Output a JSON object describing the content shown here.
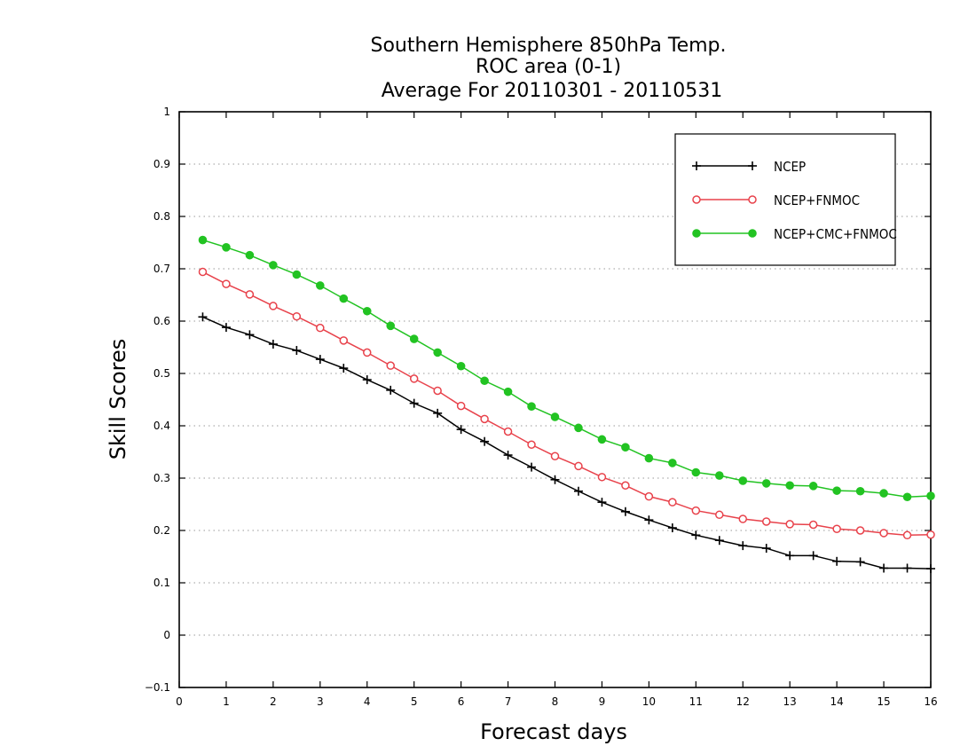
{
  "chart_data": {
    "type": "line",
    "title": [
      "Southern Hemisphere 850hPa Temp.",
      "ROC area (0-1)",
      "Average For 20110301 - 20110531"
    ],
    "xlabel": "Forecast days",
    "ylabel": "Skill Scores",
    "xlim": [
      0,
      16
    ],
    "ylim": [
      -0.1,
      1
    ],
    "x_ticks": [
      "0",
      "1",
      "2",
      "3",
      "4",
      "5",
      "6",
      "7",
      "8",
      "9",
      "10",
      "11",
      "12",
      "13",
      "14",
      "15",
      "16"
    ],
    "y_ticks": [
      "−0.1",
      "0",
      "0.1",
      "0.2",
      "0.3",
      "0.4",
      "0.5",
      "0.6",
      "0.7",
      "0.8",
      "0.9",
      "1"
    ],
    "grid": "horizontal dotted",
    "legend_position": "top-right",
    "x": [
      0.5,
      1,
      1.5,
      2,
      2.5,
      3,
      3.5,
      4,
      4.5,
      5,
      5.5,
      6,
      6.5,
      7,
      7.5,
      8,
      8.5,
      9,
      9.5,
      10,
      10.5,
      11,
      11.5,
      12,
      12.5,
      13,
      13.5,
      14,
      14.5,
      15,
      15.5,
      16
    ],
    "series": [
      {
        "name": "NCEP",
        "color": "#000000",
        "marker": "plus",
        "values": [
          0.608,
          0.588,
          0.574,
          0.556,
          0.544,
          0.527,
          0.51,
          0.488,
          0.468,
          0.443,
          0.424,
          0.393,
          0.37,
          0.344,
          0.321,
          0.297,
          0.275,
          0.254,
          0.236,
          0.22,
          0.205,
          0.191,
          0.181,
          0.171,
          0.166,
          0.152,
          0.152,
          0.141,
          0.14,
          0.128,
          0.128,
          0.127
        ]
      },
      {
        "name": "NCEP+FNMOC",
        "color": "#e8424b",
        "marker": "open-circle",
        "values": [
          0.694,
          0.671,
          0.651,
          0.629,
          0.609,
          0.587,
          0.563,
          0.54,
          0.515,
          0.49,
          0.467,
          0.438,
          0.413,
          0.389,
          0.364,
          0.342,
          0.323,
          0.302,
          0.286,
          0.265,
          0.254,
          0.238,
          0.23,
          0.222,
          0.217,
          0.212,
          0.211,
          0.203,
          0.2,
          0.195,
          0.191,
          0.192
        ]
      },
      {
        "name": "NCEP+CMC+FNMOC",
        "color": "#22c322",
        "marker": "filled-circle",
        "values": [
          0.755,
          0.741,
          0.726,
          0.707,
          0.689,
          0.668,
          0.643,
          0.619,
          0.591,
          0.566,
          0.54,
          0.514,
          0.486,
          0.465,
          0.437,
          0.417,
          0.396,
          0.374,
          0.359,
          0.338,
          0.329,
          0.311,
          0.305,
          0.295,
          0.29,
          0.286,
          0.285,
          0.276,
          0.275,
          0.271,
          0.264,
          0.266
        ]
      }
    ]
  }
}
